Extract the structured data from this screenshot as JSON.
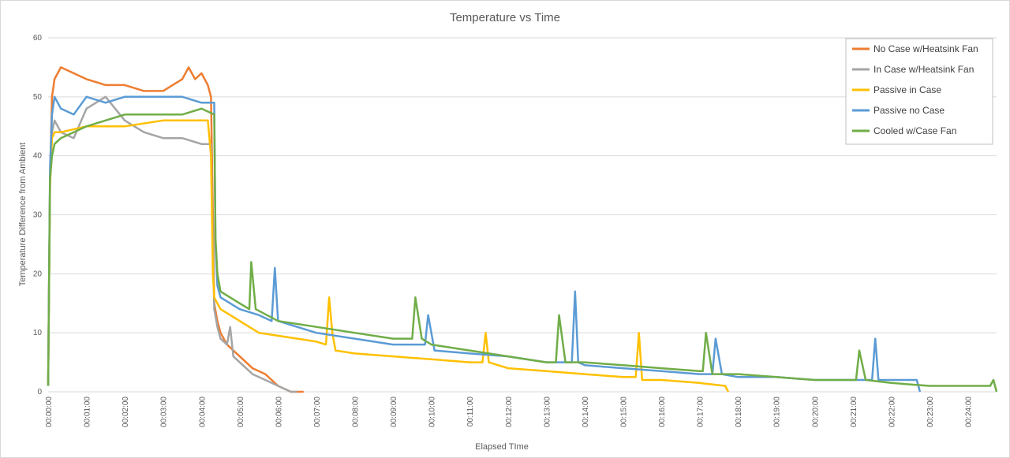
{
  "chart_data": {
    "type": "line",
    "title": "Temperature  vs Time",
    "xlabel": "Elapsed TIme",
    "ylabel": "Temperature Difference from Ambient",
    "ylim": [
      0,
      60
    ],
    "yticks": [
      0,
      10,
      20,
      30,
      40,
      50,
      60
    ],
    "xlim_seconds": [
      0,
      1485
    ],
    "x_unit": "hh:mm:ss elapsed",
    "xticks": [
      "00:00:00",
      "00:01:00",
      "00:02:00",
      "00:03:00",
      "00:04:00",
      "00:05:00",
      "00:06:00",
      "00:07:00",
      "00:08:00",
      "00:09:00",
      "00:10:00",
      "00:11:00",
      "00:12:00",
      "00:13:00",
      "00:14:00",
      "00:15:00",
      "00:16:00",
      "00:17:00",
      "00:18:00",
      "00:19:00",
      "00:20:00",
      "00:21:00",
      "00:22:00",
      "00:23:00",
      "00:24:00"
    ],
    "grid": "horizontal",
    "legend_position": "top-right",
    "series": [
      {
        "name": "No Case w/Heatsink Fan",
        "color": "#ED7D31",
        "x": [
          "00:00:00",
          "00:00:03",
          "00:00:06",
          "00:00:10",
          "00:00:20",
          "00:00:40",
          "00:01:00",
          "00:01:30",
          "00:02:00",
          "00:02:30",
          "00:03:00",
          "00:03:30",
          "00:03:40",
          "00:03:50",
          "00:04:00",
          "00:04:10",
          "00:04:15",
          "00:04:18",
          "00:04:20",
          "00:04:25",
          "00:04:30",
          "00:04:40",
          "00:04:50",
          "00:05:00",
          "00:05:20",
          "00:05:40",
          "00:05:50",
          "00:06:00",
          "00:06:20",
          "00:06:40"
        ],
        "y": [
          1,
          36,
          50,
          53,
          55,
          54,
          53,
          52,
          52,
          51,
          51,
          53,
          55,
          53,
          54,
          52,
          50,
          30,
          15,
          12,
          10,
          8,
          7,
          6,
          4,
          3,
          2,
          1,
          0,
          0
        ]
      },
      {
        "name": "In Case w/Heatsink Fan",
        "color": "#A5A5A5",
        "x": [
          "00:00:00",
          "00:00:03",
          "00:00:06",
          "00:00:10",
          "00:00:20",
          "00:00:40",
          "00:01:00",
          "00:01:30",
          "00:02:00",
          "00:02:30",
          "00:03:00",
          "00:03:30",
          "00:04:00",
          "00:04:15",
          "00:04:18",
          "00:04:20",
          "00:04:25",
          "00:04:30",
          "00:04:40",
          "00:04:45",
          "00:04:50",
          "00:05:00",
          "00:05:20",
          "00:05:40",
          "00:06:00",
          "00:06:20",
          "00:06:30"
        ],
        "y": [
          1,
          35,
          44,
          46,
          44,
          43,
          48,
          50,
          46,
          44,
          43,
          43,
          42,
          42,
          25,
          14,
          11,
          9,
          8,
          11,
          6,
          5,
          3,
          2,
          1,
          0,
          0
        ]
      },
      {
        "name": "Passive in Case",
        "color": "#FFC000",
        "x": [
          "00:00:00",
          "00:00:03",
          "00:00:06",
          "00:00:10",
          "00:00:20",
          "00:01:00",
          "00:02:00",
          "00:03:00",
          "00:04:00",
          "00:04:10",
          "00:04:15",
          "00:04:18",
          "00:04:20",
          "00:04:30",
          "00:04:45",
          "00:05:00",
          "00:05:30",
          "00:06:00",
          "00:06:30",
          "00:07:00",
          "00:07:15",
          "00:07:20",
          "00:07:25",
          "00:07:30",
          "00:08:00",
          "00:09:00",
          "00:10:00",
          "00:11:00",
          "00:11:20",
          "00:11:25",
          "00:11:30",
          "00:12:00",
          "00:13:00",
          "00:14:00",
          "00:15:00",
          "00:15:20",
          "00:15:25",
          "00:15:30",
          "00:16:00",
          "00:17:00",
          "00:17:40",
          "00:17:45"
        ],
        "y": [
          1,
          35,
          43,
          44,
          44,
          45,
          45,
          46,
          46,
          46,
          40,
          20,
          16,
          14,
          13,
          12,
          10,
          9.5,
          9,
          8.5,
          8,
          16,
          10,
          7,
          6.5,
          6,
          5.5,
          5,
          5,
          10,
          5,
          4,
          3.5,
          3,
          2.5,
          2.5,
          10,
          2,
          2,
          1.5,
          1,
          0
        ]
      },
      {
        "name": "Passive no Case",
        "color": "#5B9BD5",
        "x": [
          "00:00:00",
          "00:00:03",
          "00:00:06",
          "00:00:10",
          "00:00:20",
          "00:00:40",
          "00:01:00",
          "00:01:30",
          "00:02:00",
          "00:02:30",
          "00:03:00",
          "00:03:30",
          "00:04:00",
          "00:04:20",
          "00:04:22",
          "00:04:25",
          "00:04:30",
          "00:05:00",
          "00:05:30",
          "00:05:50",
          "00:05:55",
          "00:06:00",
          "00:06:30",
          "00:07:00",
          "00:08:00",
          "00:09:00",
          "00:09:50",
          "00:09:55",
          "00:10:05",
          "00:11:00",
          "00:12:00",
          "00:13:00",
          "00:13:40",
          "00:13:45",
          "00:13:50",
          "00:14:00",
          "00:15:00",
          "00:16:00",
          "00:17:00",
          "00:17:20",
          "00:17:25",
          "00:17:35",
          "00:18:00",
          "00:19:00",
          "00:20:00",
          "00:21:00",
          "00:21:30",
          "00:21:35",
          "00:21:40",
          "00:22:00",
          "00:22:40",
          "00:22:45"
        ],
        "y": [
          1,
          38,
          47,
          50,
          48,
          47,
          50,
          49,
          50,
          50,
          50,
          50,
          49,
          49,
          25,
          18,
          16,
          14,
          13,
          12,
          21,
          12,
          11,
          10,
          9,
          8,
          8,
          13,
          7,
          6.5,
          6,
          5,
          5,
          17,
          5,
          4.5,
          4,
          3.5,
          3,
          3,
          9,
          3,
          2.5,
          2.5,
          2,
          2,
          2,
          9,
          2,
          2,
          2,
          0
        ]
      },
      {
        "name": "Cooled w/Case Fan",
        "color": "#70AD47",
        "x": [
          "00:00:00",
          "00:00:03",
          "00:00:06",
          "00:00:10",
          "00:00:20",
          "00:00:40",
          "00:01:00",
          "00:01:30",
          "00:02:00",
          "00:02:30",
          "00:03:00",
          "00:03:30",
          "00:04:00",
          "00:04:20",
          "00:04:22",
          "00:04:25",
          "00:04:30",
          "00:05:00",
          "00:05:15",
          "00:05:18",
          "00:05:25",
          "00:06:00",
          "00:07:00",
          "00:08:00",
          "00:09:00",
          "00:09:30",
          "00:09:35",
          "00:09:45",
          "00:10:00",
          "00:11:00",
          "00:12:00",
          "00:13:00",
          "00:13:15",
          "00:13:20",
          "00:13:30",
          "00:14:00",
          "00:15:00",
          "00:16:00",
          "00:17:00",
          "00:17:05",
          "00:17:10",
          "00:17:20",
          "00:18:00",
          "00:19:00",
          "00:20:00",
          "00:21:00",
          "00:21:05",
          "00:21:10",
          "00:21:20",
          "00:22:00",
          "00:23:00",
          "00:24:00",
          "00:24:35",
          "00:24:40",
          "00:24:45"
        ],
        "y": [
          1,
          36,
          40,
          42,
          43,
          44,
          45,
          46,
          47,
          47,
          47,
          47,
          48,
          47,
          26,
          20,
          17,
          15,
          14,
          22,
          14,
          12,
          11,
          10,
          9,
          9,
          16,
          9,
          8,
          7,
          6,
          5,
          5,
          13,
          5,
          5,
          4.5,
          4,
          3.5,
          3.5,
          10,
          3,
          3,
          2.5,
          2,
          2,
          2,
          7,
          2,
          1.5,
          1,
          1,
          1,
          2,
          0
        ]
      }
    ]
  }
}
